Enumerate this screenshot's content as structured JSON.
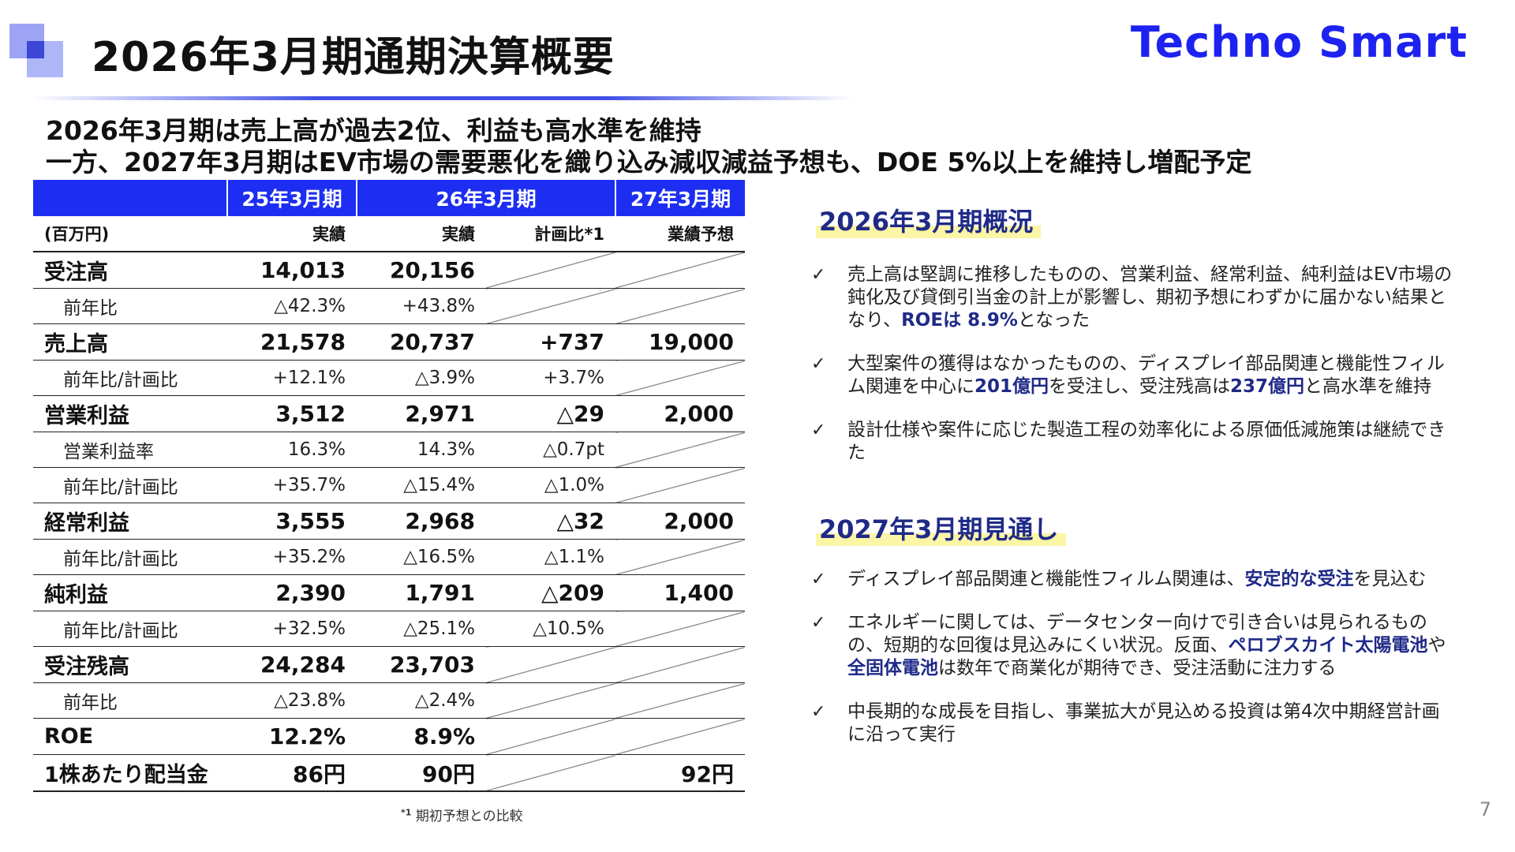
{
  "header": {
    "title": "2026年3月期通期決算概要",
    "brand": "Techno Smart",
    "headline_1": "2026年3月期は売上高が過去2位、利益も高水準を維持",
    "headline_2": "一方、2027年3月期はEV市場の需要悪化を織り込み減収減益予想も、DOE 5%以上を維持し増配予定"
  },
  "table": {
    "periods": [
      "25年3月期",
      "26年3月期",
      "27年3月期"
    ],
    "unit": "(百万円)",
    "subheaders": [
      "実績",
      "実績",
      "計画比*1",
      "業績予想"
    ],
    "rows": [
      {
        "label": "受注高",
        "c1": "14,013",
        "c2": "20,156",
        "c3": "",
        "c4": ""
      },
      {
        "label": "前年比",
        "c1": "△42.3%",
        "c2": "+43.8%",
        "c3": "",
        "c4": ""
      },
      {
        "label": "売上高",
        "c1": "21,578",
        "c2": "20,737",
        "c3": "+737",
        "c4": "19,000"
      },
      {
        "label": "前年比/計画比",
        "c1": "+12.1%",
        "c2": "△3.9%",
        "c3": "+3.7%",
        "c4": ""
      },
      {
        "label": "営業利益",
        "c1": "3,512",
        "c2": "2,971",
        "c3": "△29",
        "c4": "2,000"
      },
      {
        "label": "営業利益率",
        "c1": "16.3%",
        "c2": "14.3%",
        "c3": "△0.7pt",
        "c4": ""
      },
      {
        "label": "前年比/計画比",
        "c1": "+35.7%",
        "c2": "△15.4%",
        "c3": "△1.0%",
        "c4": ""
      },
      {
        "label": "経常利益",
        "c1": "3,555",
        "c2": "2,968",
        "c3": "△32",
        "c4": "2,000"
      },
      {
        "label": "前年比/計画比",
        "c1": "+35.2%",
        "c2": "△16.5%",
        "c3": "△1.1%",
        "c4": ""
      },
      {
        "label": "純利益",
        "c1": "2,390",
        "c2": "1,791",
        "c3": "△209",
        "c4": "1,400"
      },
      {
        "label": "前年比/計画比",
        "c1": "+32.5%",
        "c2": "△25.1%",
        "c3": "△10.5%",
        "c4": ""
      },
      {
        "label": "受注残高",
        "c1": "24,284",
        "c2": "23,703",
        "c3": "",
        "c4": ""
      },
      {
        "label": "前年比",
        "c1": "△23.8%",
        "c2": "△2.4%",
        "c3": "",
        "c4": ""
      },
      {
        "label": "ROE",
        "c1": "12.2%",
        "c2": "8.9%",
        "c3": "",
        "c4": ""
      },
      {
        "label": "1株あたり配当金",
        "c1": "86円",
        "c2": "90円",
        "c3": "",
        "c4": "92円"
      }
    ],
    "footnote_mark": "*1",
    "footnote_text": "期初予想との比較"
  },
  "section_2026": {
    "heading": "2026年3月期概況",
    "bullets": [
      {
        "t1": "売上高は堅調に推移したものの、営業利益、経常利益、純利益はEV市場の鈍化及び貸倒引当金の計上が影響し、期初予想にわずかに届かない結果となり、",
        "b1": "ROEは 8.9%",
        "t2": "となった",
        "b2": "",
        "t3": "",
        "b3": "",
        "t4": ""
      },
      {
        "t1": "大型案件の獲得はなかったものの、ディスプレイ部品関連と機能性フィルム関連を中心に",
        "b1": "201億円",
        "t2": "を受注し、受注残高は",
        "b2": "237億円",
        "t3": "と高水準を維持",
        "b3": "",
        "t4": ""
      },
      {
        "t1": "設計仕様や案件に応じた製造工程の効率化による原価低減施策は継続できた",
        "b1": "",
        "t2": "",
        "b2": "",
        "t3": "",
        "b3": "",
        "t4": ""
      }
    ]
  },
  "section_2027": {
    "heading": "2027年3月期見通し",
    "bullets": [
      {
        "t1": "ディスプレイ部品関連と機能性フィルム関連は、",
        "b1": "安定的な受注",
        "t2": "を見込む",
        "b2": "",
        "t3": "",
        "b3": "",
        "t4": ""
      },
      {
        "t1": "エネルギーに関しては、データセンター向けで引き合いは見られるものの、短期的な回復は見込みにくい状況。反面、",
        "b1": "ペロブスカイト太陽電池",
        "t2": "や",
        "b2": "全固体電池",
        "t3": "は数年で商業化が期待でき、受注活動に注力する",
        "b3": "",
        "t4": ""
      },
      {
        "t1": "中長期的な成長を目指し、事業拡大が見込める投資は第4次中期経営計画に沿って実行",
        "b1": "",
        "t2": "",
        "b2": "",
        "t3": "",
        "b3": "",
        "t4": ""
      }
    ]
  },
  "check_glyph": "✓",
  "page_number": "7",
  "colors": {
    "accent": "#1d2ef2",
    "highlight": "#fbf5a6",
    "emphasis_text": "#1f2a87"
  }
}
